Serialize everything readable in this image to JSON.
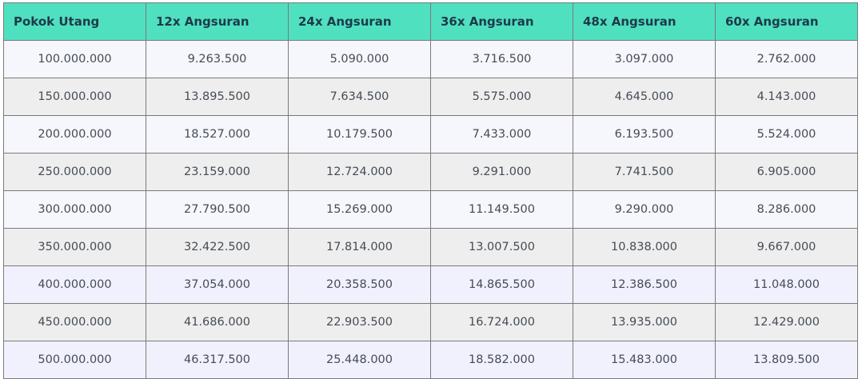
{
  "table": {
    "headers": [
      "Pokok Utang",
      "12x Angsuran",
      "24x Angsuran",
      "36x Angsuran",
      "48x Angsuran",
      "60x Angsuran"
    ],
    "rows": [
      [
        "100.000.000",
        "9.263.500",
        "5.090.000",
        "3.716.500",
        "3.097.000",
        "2.762.000"
      ],
      [
        "150.000.000",
        "13.895.500",
        "7.634.500",
        "5.575.000",
        "4.645.000",
        "4.143.000"
      ],
      [
        "200.000.000",
        "18.527.000",
        "10.179.500",
        "7.433.000",
        "6.193.500",
        "5.524.000"
      ],
      [
        "250.000.000",
        "23.159.000",
        "12.724.000",
        "9.291.000",
        "7.741.500",
        "6.905.000"
      ],
      [
        "300.000.000",
        "27.790.500",
        "15.269.000",
        "11.149.500",
        "9.290.000",
        "8.286.000"
      ],
      [
        "350.000.000",
        "32.422.500",
        "17.814.000",
        "13.007.500",
        "10.838.000",
        "9.667.000"
      ],
      [
        "400.000.000",
        "37.054.000",
        "20.358.500",
        "14.865.500",
        "12.386.500",
        "11.048.000"
      ],
      [
        "450.000.000",
        "41.686.000",
        "22.903.500",
        "16.724.000",
        "13.935.000",
        "12.429.000"
      ],
      [
        "500.000.000",
        "46.317.500",
        "25.448.000",
        "18.582.000",
        "15.483.000",
        "13.809.500"
      ]
    ]
  },
  "colors": {
    "header_bg": "#4fe0c0",
    "header_text": "#1d3a4a",
    "row_odd_bg": "#f6f6fd",
    "row_even_bg": "#eeeeee",
    "border": "#7a7a7a"
  }
}
